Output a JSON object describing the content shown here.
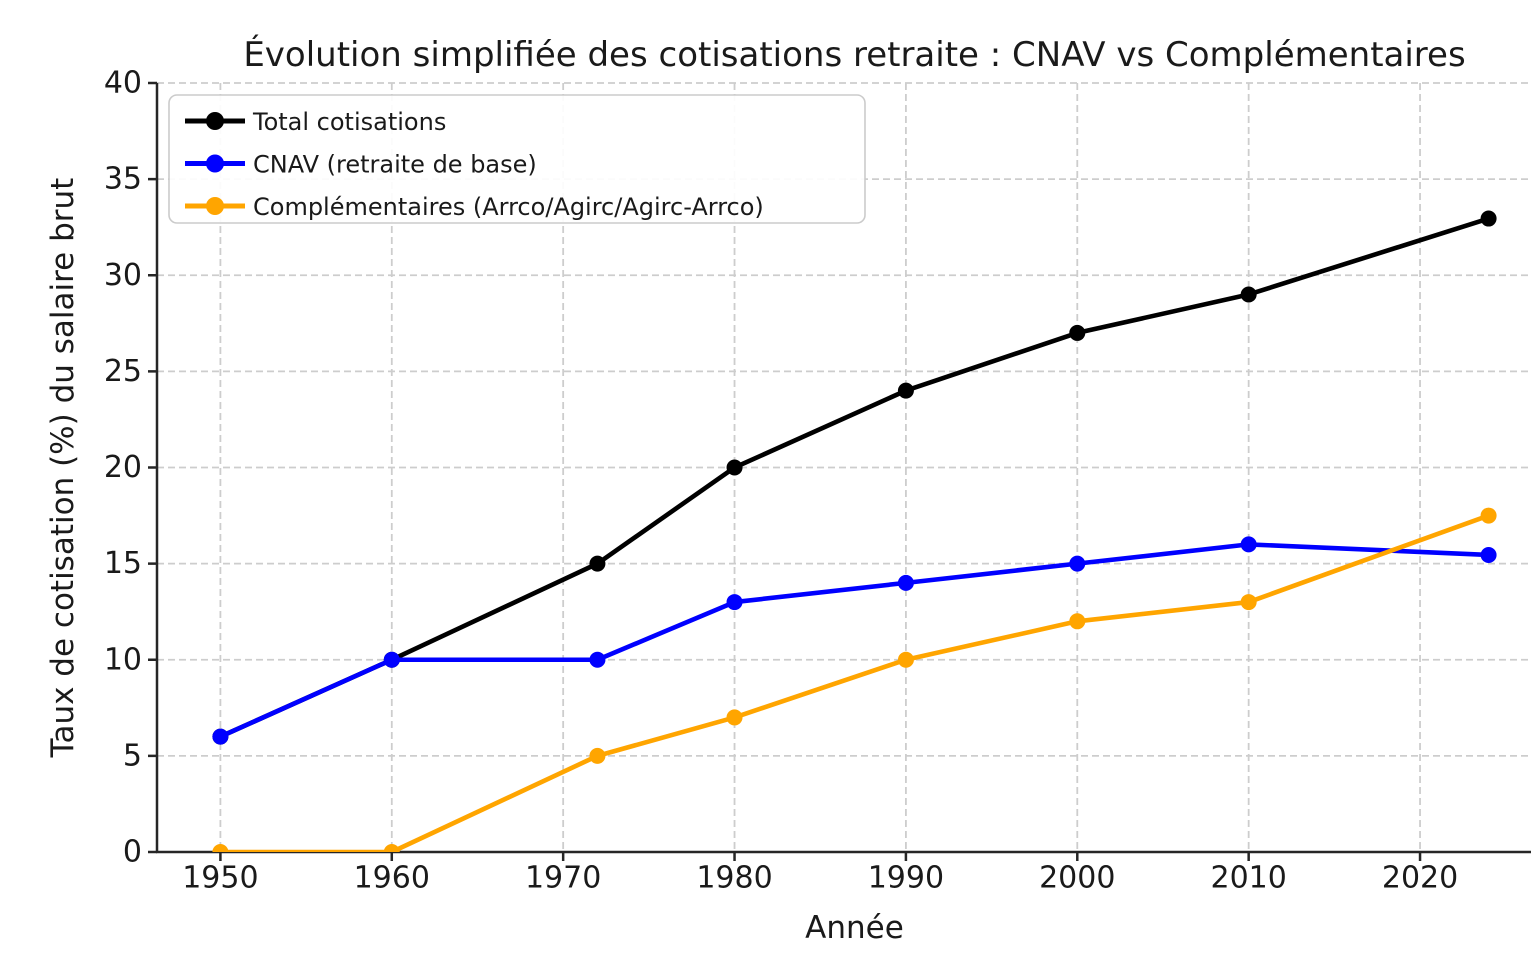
{
  "chart_data": {
    "type": "line",
    "title": "Évolution simplifiée des cotisations retraite : CNAV vs Complémentaires",
    "xlabel": "Année",
    "ylabel": "Taux de cotisation (%) du salaire brut",
    "x": [
      1950,
      1960,
      1972,
      1980,
      1990,
      2000,
      2010,
      2024
    ],
    "series": [
      {
        "name": "Total cotisations",
        "color": "#000000",
        "values": [
          6,
          10,
          15,
          20,
          24,
          27,
          29,
          32.95
        ]
      },
      {
        "name": "CNAV (retraite de base)",
        "color": "#0000ff",
        "values": [
          6,
          10,
          10,
          13,
          14,
          15,
          16,
          15.45
        ]
      },
      {
        "name": "Complémentaires (Arrco/Agirc/Agirc-Arrco)",
        "color": "#ffa500",
        "values": [
          0,
          0,
          5,
          7,
          10,
          12,
          13,
          17.5
        ]
      }
    ],
    "xlim": [
      1946.3,
      2027.7
    ],
    "ylim": [
      0,
      40
    ],
    "x_ticks": [
      1950,
      1960,
      1970,
      1980,
      1990,
      2000,
      2010,
      2020
    ],
    "y_ticks": [
      0,
      5,
      10,
      15,
      20,
      25,
      30,
      35,
      40
    ],
    "grid": true,
    "grid_style": "dashed",
    "legend_position": "upper left",
    "colors": {
      "background": "#ffffff",
      "grid": "#cdcdcd",
      "spine": "#262626",
      "text": "#1a1a1a",
      "legend_border": "#cbcbcb",
      "legend_background": "#ffffff"
    }
  }
}
